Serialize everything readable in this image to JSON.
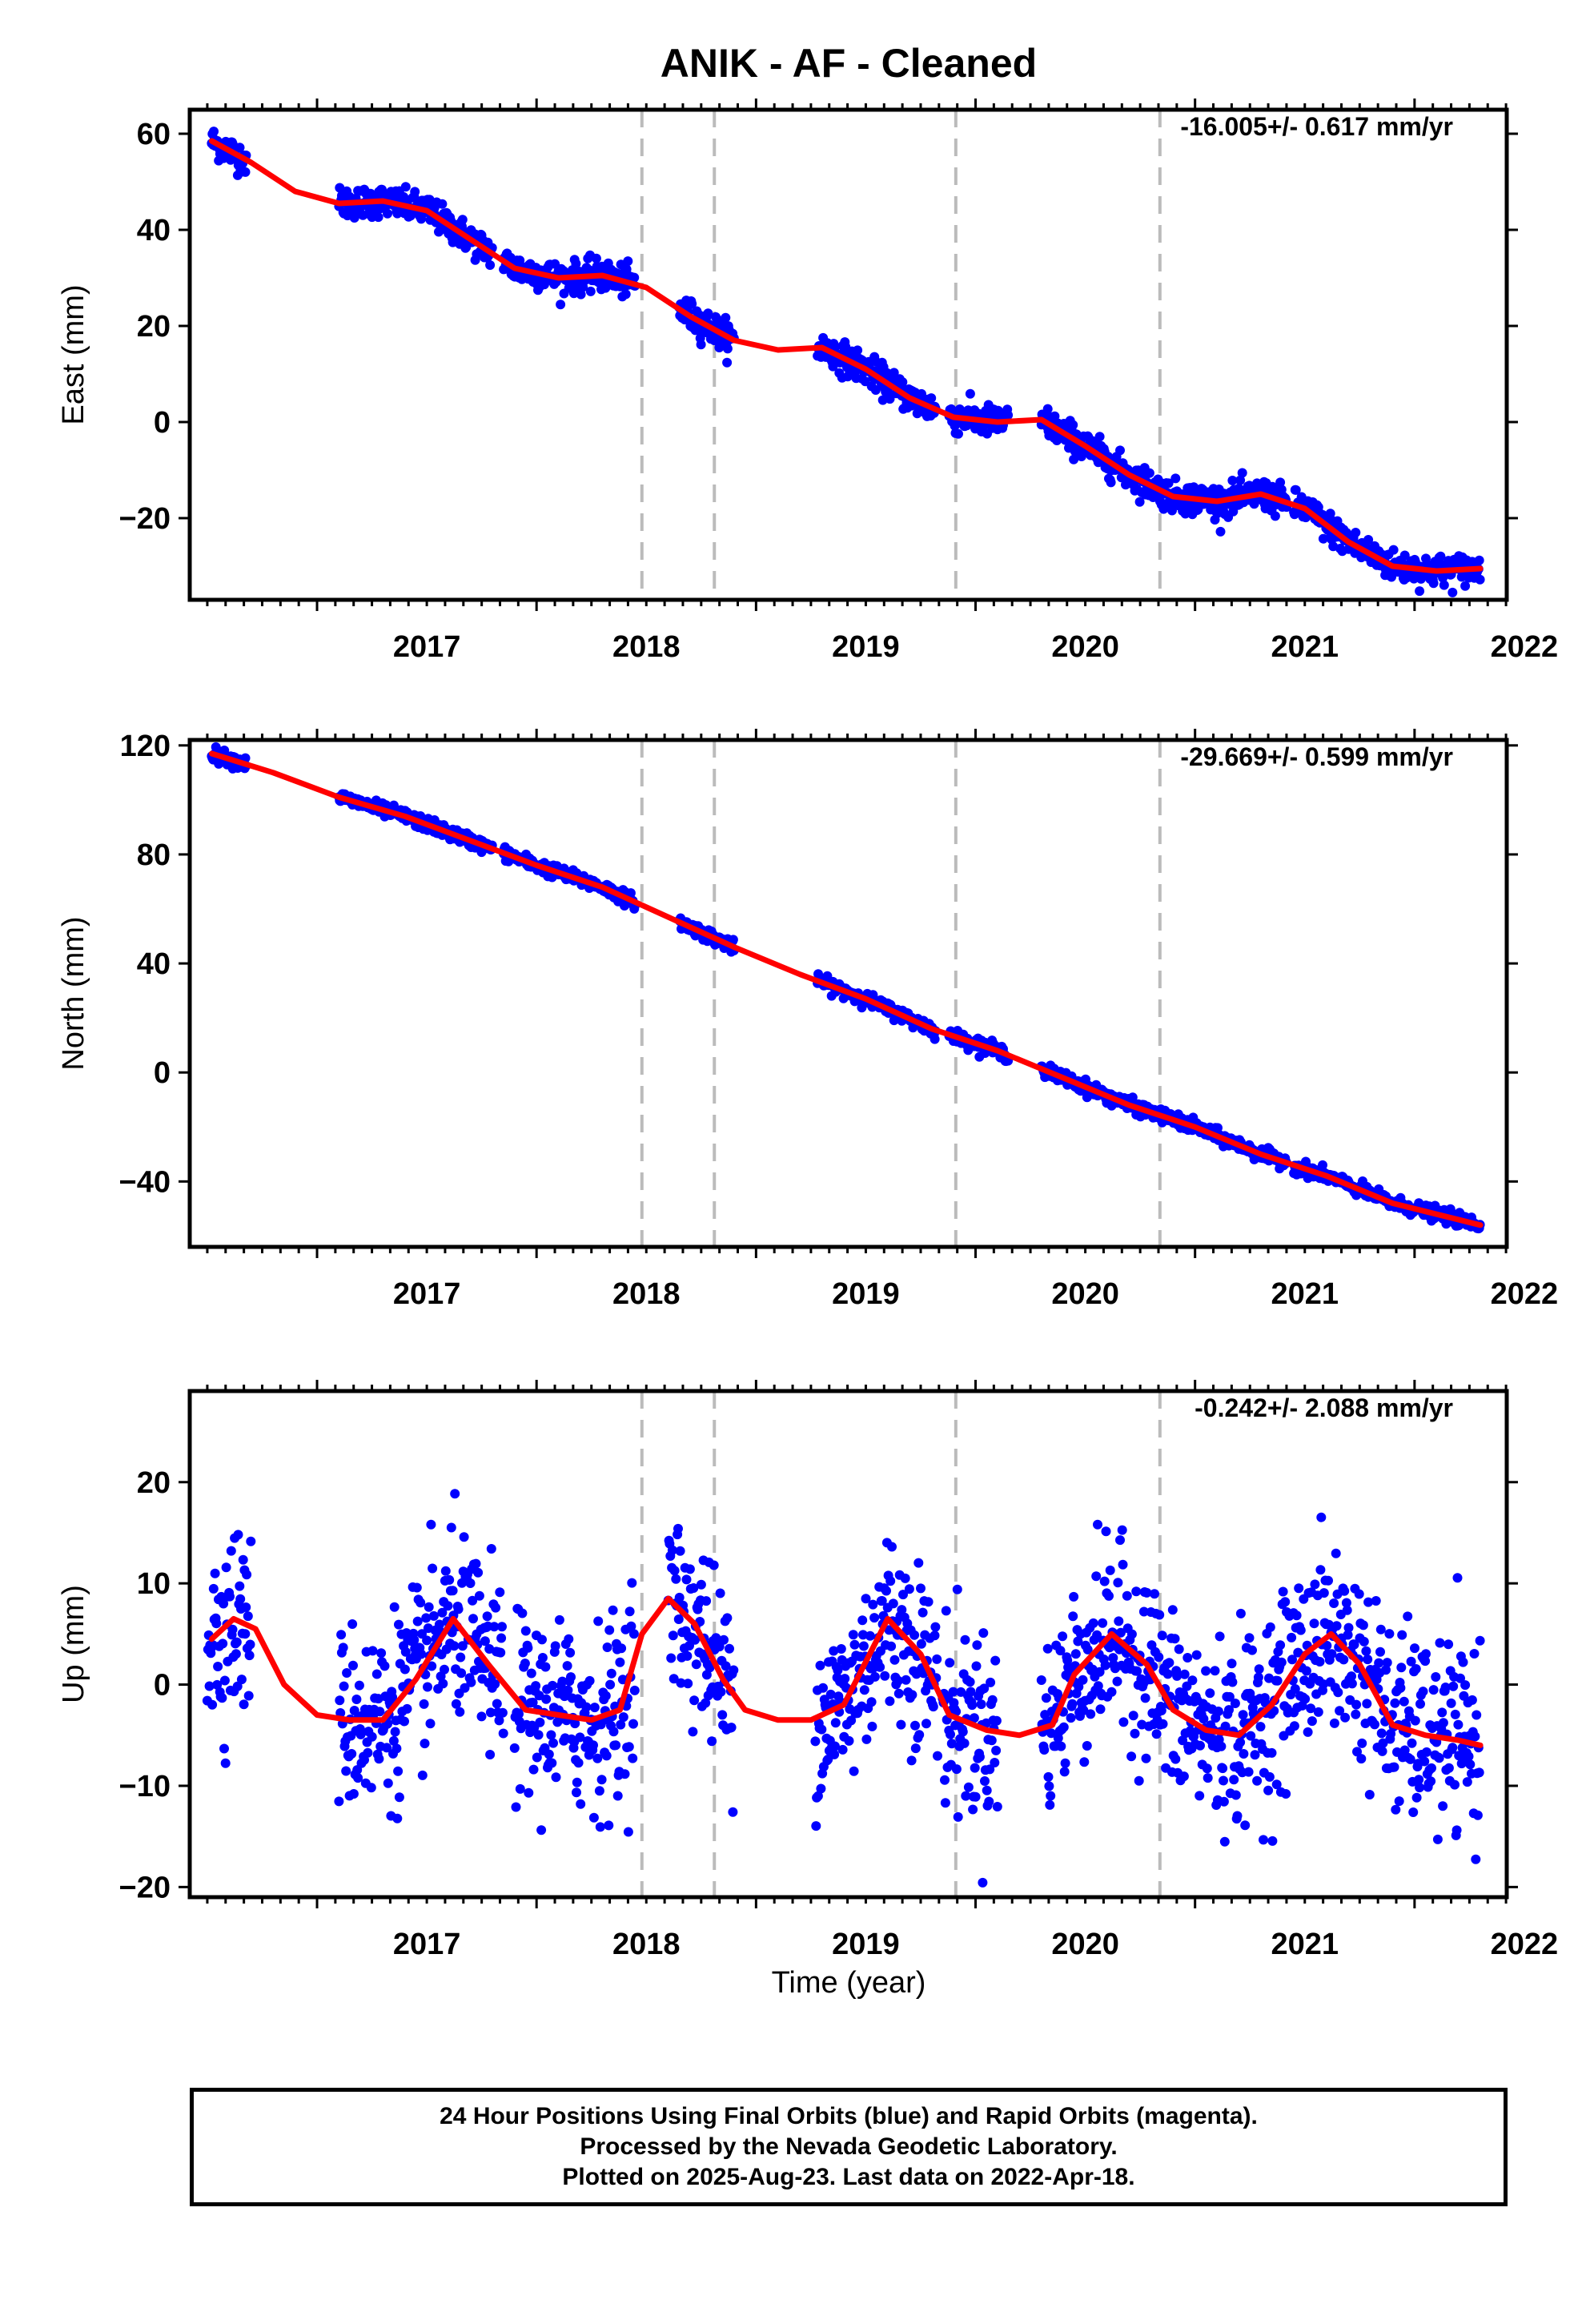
{
  "chart_data": {
    "title": "ANIK  - AF - Cleaned",
    "xlabel": "Time (year)",
    "x_ticks": [
      "2017",
      "2018",
      "2019",
      "2020",
      "2021",
      "2022"
    ],
    "x_range": [
      2016.42,
      2022.42
    ],
    "vertical_dashed_lines": [
      2018.48,
      2018.81,
      2019.91,
      2020.84
    ],
    "colors": {
      "points": "#0000ff",
      "fit": "#ff0000",
      "dashed": "#bbbbbb"
    },
    "panels": [
      {
        "type": "scatter",
        "ylabel": "East (mm)",
        "rate": "-16.005+/- 0.617 mm/yr",
        "ylim": [
          -37,
          65
        ],
        "y_ticks": [
          "60",
          "40",
          "20",
          "0",
          "−20"
        ],
        "y_tick_values": [
          60,
          40,
          20,
          0,
          -20
        ],
        "data_segments": [
          [
            2016.52,
            2016.68
          ],
          [
            2017.1,
            2017.8
          ],
          [
            2017.85,
            2018.45
          ],
          [
            2018.65,
            2018.9
          ],
          [
            2019.28,
            2019.82
          ],
          [
            2019.88,
            2020.1
          ],
          [
            2020.1,
            2020.15
          ],
          [
            2020.3,
            2021.42
          ],
          [
            2021.45,
            2022.3
          ]
        ],
        "scatter_sd": 1.6,
        "fit": {
          "x": [
            2016.52,
            2016.7,
            2016.9,
            2017.1,
            2017.3,
            2017.5,
            2017.7,
            2017.9,
            2018.1,
            2018.3,
            2018.5,
            2018.7,
            2018.9,
            2019.1,
            2019.3,
            2019.5,
            2019.7,
            2019.9,
            2020.1,
            2020.3,
            2020.5,
            2020.7,
            2020.9,
            2021.1,
            2021.3,
            2021.5,
            2021.7,
            2021.9,
            2022.1,
            2022.3
          ],
          "y": [
            58.5,
            54,
            48,
            45.5,
            46,
            44,
            38,
            32,
            30,
            30.5,
            28,
            22,
            17,
            15,
            15.5,
            11,
            5,
            1,
            0,
            0.5,
            -5,
            -11,
            -15.5,
            -16.5,
            -15,
            -18,
            -25,
            -30,
            -31,
            -30.5
          ]
        }
      },
      {
        "type": "scatter",
        "ylabel": "North (mm)",
        "rate": "-29.669+/- 0.599 mm/yr",
        "ylim": [
          -64,
          122
        ],
        "y_ticks": [
          "120",
          "80",
          "40",
          "0",
          "−40"
        ],
        "y_tick_values": [
          120,
          80,
          40,
          0,
          -40
        ],
        "data_segments": [
          [
            2016.52,
            2016.68
          ],
          [
            2017.1,
            2017.8
          ],
          [
            2017.85,
            2018.45
          ],
          [
            2018.65,
            2018.9
          ],
          [
            2019.28,
            2019.82
          ],
          [
            2019.88,
            2020.1
          ],
          [
            2020.1,
            2020.15
          ],
          [
            2020.3,
            2021.42
          ],
          [
            2021.45,
            2022.3
          ]
        ],
        "scatter_sd": 1.2,
        "fit": {
          "x": [
            2016.52,
            2016.8,
            2017.1,
            2017.4,
            2017.7,
            2018.0,
            2018.3,
            2018.6,
            2018.9,
            2019.2,
            2019.5,
            2019.8,
            2020.1,
            2020.4,
            2020.7,
            2021.0,
            2021.3,
            2021.6,
            2021.9,
            2022.3
          ],
          "y": [
            117,
            110,
            101,
            94,
            85,
            76,
            68,
            57,
            46,
            36,
            27,
            16,
            8,
            -2,
            -12,
            -20,
            -30,
            -38,
            -48,
            -56
          ]
        }
      },
      {
        "type": "scatter",
        "ylabel": "Up (mm)",
        "rate": "-0.242+/- 2.088 mm/yr",
        "ylim": [
          -21,
          29
        ],
        "y_ticks": [
          "20",
          "10",
          "0",
          "−10",
          "−20"
        ],
        "y_tick_values": [
          20,
          10,
          0,
          -10,
          -20
        ],
        "data_segments": [
          [
            2016.5,
            2016.7
          ],
          [
            2017.1,
            2017.85
          ],
          [
            2017.9,
            2018.45
          ],
          [
            2018.6,
            2018.9
          ],
          [
            2019.27,
            2019.83
          ],
          [
            2019.85,
            2020.1
          ],
          [
            2020.3,
            2021.45
          ],
          [
            2021.45,
            2022.3
          ]
        ],
        "scatter_sd": 4.5,
        "fit": {
          "x": [
            2016.52,
            2016.62,
            2016.72,
            2016.85,
            2017.0,
            2017.15,
            2017.3,
            2017.45,
            2017.62,
            2017.78,
            2017.95,
            2018.1,
            2018.25,
            2018.38,
            2018.48,
            2018.6,
            2018.72,
            2018.85,
            2018.95,
            2019.1,
            2019.25,
            2019.4,
            2019.6,
            2019.75,
            2019.88,
            2020.05,
            2020.2,
            2020.35,
            2020.45,
            2020.62,
            2020.78,
            2020.9,
            2021.05,
            2021.2,
            2021.35,
            2021.5,
            2021.62,
            2021.75,
            2021.9,
            2022.05,
            2022.2,
            2022.3
          ],
          "y": [
            4.5,
            6.5,
            5.5,
            0,
            -3,
            -3.5,
            -3.5,
            0.5,
            6.5,
            2,
            -2.5,
            -3,
            -3.5,
            -2.5,
            5,
            8.5,
            6,
            0.5,
            -2.5,
            -3.5,
            -3.5,
            -2,
            6.5,
            3,
            -3,
            -4.5,
            -5,
            -4,
            1,
            5,
            2,
            -2.5,
            -4.5,
            -5,
            -2,
            3,
            5,
            2,
            -4,
            -5,
            -5.5,
            -6
          ]
        }
      }
    ]
  },
  "footer": {
    "line1": "24 Hour Positions Using Final Orbits (blue) and Rapid Orbits (magenta).",
    "line2": "Processed by the Nevada Geodetic Laboratory.",
    "line3": "Plotted on 2025-Aug-23. Last data on 2022-Apr-18."
  }
}
